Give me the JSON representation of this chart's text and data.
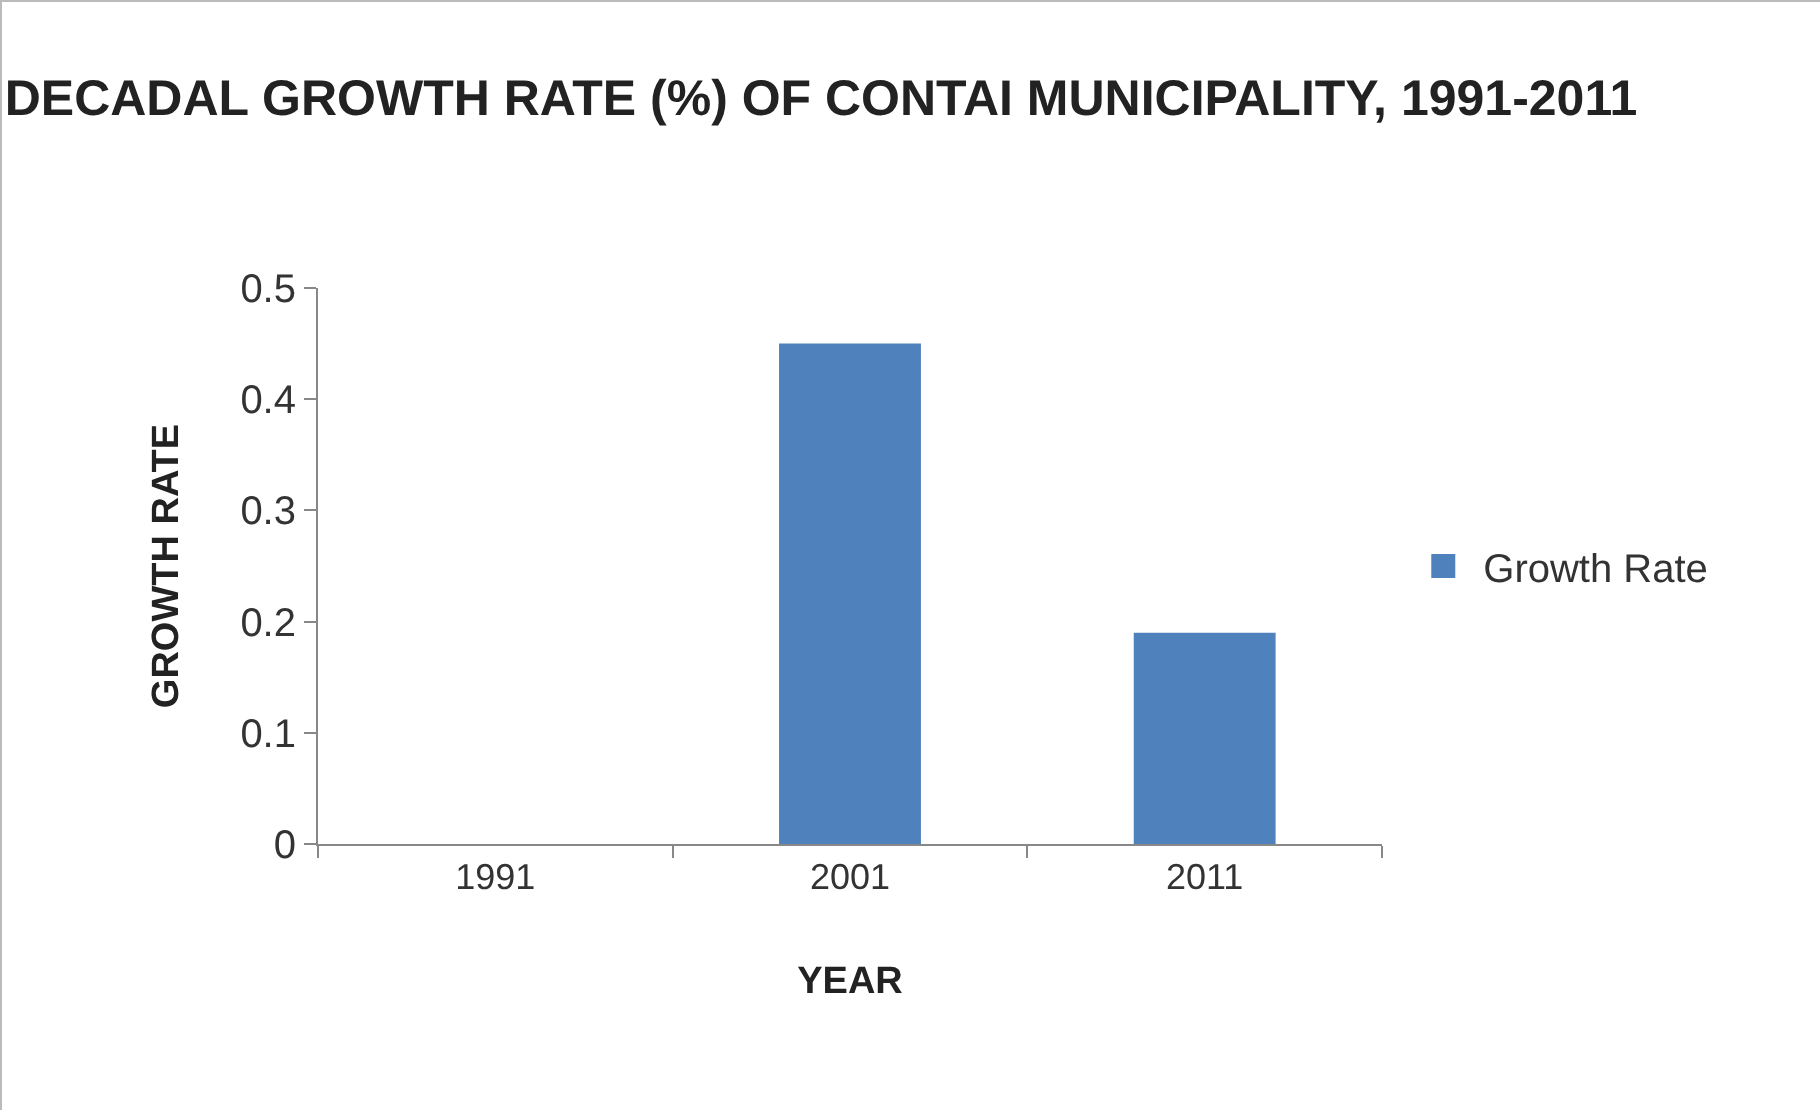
{
  "chart_data": {
    "type": "bar",
    "title": "DECADAL GROWTH RATE (%) OF CONTAI MUNICIPALITY, 1991-2011",
    "xlabel": "YEAR",
    "ylabel": "GROWTH RATE",
    "categories": [
      "1991",
      "2001",
      "2011"
    ],
    "series": [
      {
        "name": "Growth Rate",
        "color": "#4f81bd",
        "values": [
          null,
          0.45,
          0.19
        ]
      }
    ],
    "ylim": [
      0,
      0.5
    ],
    "yticks": [
      0,
      0.1,
      0.2,
      0.3,
      0.4,
      0.5
    ],
    "grid": false,
    "legend": "right"
  }
}
